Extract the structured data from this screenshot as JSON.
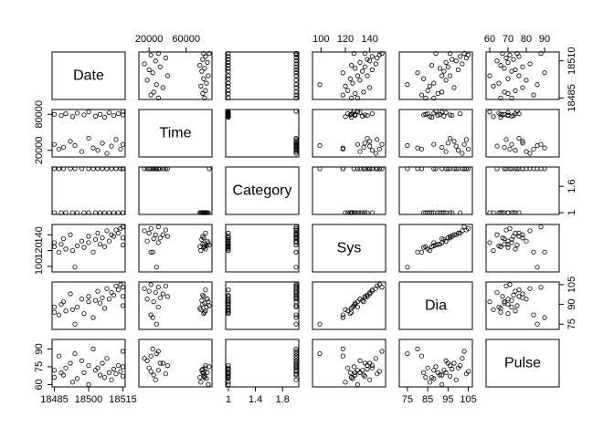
{
  "chart_data": {
    "type": "scatter_matrix",
    "variables": [
      {
        "name": "Date",
        "lim": [
          18484,
          18516
        ],
        "xticks": [
          18485,
          18500,
          18515
        ],
        "yticks": [
          18485,
          18510
        ],
        "values": [
          18485,
          18485,
          18487,
          18488,
          18489,
          18490,
          18492,
          18493,
          18494,
          18495,
          18497,
          18498,
          18500,
          18500,
          18502,
          18503,
          18504,
          18505,
          18506,
          18507,
          18508,
          18509,
          18510,
          18511,
          18512,
          18513,
          18514,
          18515,
          18515,
          18515
        ]
      },
      {
        "name": "Time",
        "lim": [
          9000,
          88000
        ],
        "xticks": [
          20000,
          60000
        ],
        "yticks": [
          20000,
          80000
        ],
        "values": [
          30000,
          80000,
          22000,
          78000,
          25000,
          81000,
          35000,
          76000,
          28000,
          82000,
          18000,
          79000,
          40000,
          84000,
          24000,
          77000,
          20000,
          80000,
          32000,
          75000,
          15000,
          83000,
          27000,
          78000,
          38000,
          81000,
          22000,
          79000,
          30000,
          85000
        ]
      },
      {
        "name": "Category",
        "lim": [
          0.96,
          2.04
        ],
        "xticks": [
          1.0,
          1.4,
          1.8
        ],
        "yticks": [
          1.0,
          1.6
        ],
        "values": [
          2,
          1,
          2,
          1,
          2,
          1,
          2,
          1,
          2,
          1,
          2,
          1,
          2,
          1,
          2,
          1,
          2,
          1,
          2,
          1,
          2,
          1,
          2,
          1,
          2,
          1,
          2,
          1,
          2,
          2
        ]
      },
      {
        "name": "Sys",
        "lim": [
          93,
          153
        ],
        "xticks": [
          100,
          120,
          140
        ],
        "yticks": [
          100,
          120,
          140
        ],
        "values": [
          130,
          125,
          118,
          128,
          135,
          122,
          140,
          120,
          99,
          126,
          132,
          124,
          138,
          130,
          118,
          134,
          142,
          128,
          136,
          125,
          145,
          132,
          140,
          138,
          146,
          142,
          148,
          136,
          150,
          127
        ]
      },
      {
        "name": "Dia",
        "lim": [
          71,
          107
        ],
        "xticks": [
          75,
          85,
          95,
          105
        ],
        "yticks": [
          75,
          90,
          105
        ],
        "values": [
          88,
          84,
          82,
          90,
          92,
          85,
          98,
          86,
          75,
          88,
          94,
          83,
          96,
          92,
          80,
          93,
          100,
          91,
          95,
          87,
          102,
          94,
          99,
          97,
          104,
          101,
          105,
          96,
          103,
          89
        ]
      },
      {
        "name": "Pulse",
        "lim": [
          58,
          98
        ],
        "xticks": [
          60,
          70,
          80,
          90
        ],
        "yticks": [
          60,
          75,
          90
        ],
        "values": [
          72,
          66,
          84,
          70,
          68,
          74,
          78,
          62,
          86,
          65,
          80,
          70,
          76,
          60,
          90,
          72,
          74,
          68,
          78,
          66,
          82,
          70,
          64,
          73,
          69,
          76,
          71,
          67,
          88,
          75
        ]
      }
    ]
  }
}
